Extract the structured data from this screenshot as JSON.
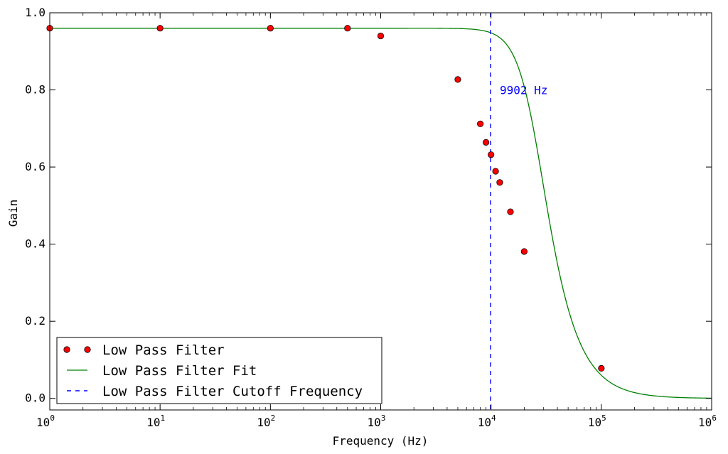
{
  "chart_data": {
    "type": "line",
    "title": "",
    "xlabel": "Frequency (Hz)",
    "ylabel": "Gain",
    "xscale": "log",
    "xlim": [
      1,
      1000000
    ],
    "ylim": [
      -0.03,
      1.0
    ],
    "grid": false,
    "legend_position": "lower-left",
    "x_ticks": [
      {
        "base": "10",
        "exp": "0",
        "value": 1
      },
      {
        "base": "10",
        "exp": "1",
        "value": 10
      },
      {
        "base": "10",
        "exp": "2",
        "value": 100
      },
      {
        "base": "10",
        "exp": "3",
        "value": 1000
      },
      {
        "base": "10",
        "exp": "4",
        "value": 10000
      },
      {
        "base": "10",
        "exp": "5",
        "value": 100000
      },
      {
        "base": "10",
        "exp": "6",
        "value": 1000000
      }
    ],
    "y_ticks": [
      {
        "label": "0.0",
        "value": 0.0
      },
      {
        "label": "0.2",
        "value": 0.2
      },
      {
        "label": "0.4",
        "value": 0.4
      },
      {
        "label": "0.6",
        "value": 0.6
      },
      {
        "label": "0.8",
        "value": 0.8
      },
      {
        "label": "1.0",
        "value": 1.0
      }
    ],
    "series": [
      {
        "name": "Low Pass Filter",
        "kind": "markers",
        "color": "#ff0000",
        "x": [
          1,
          10,
          100,
          500,
          1000,
          5000,
          8000,
          9000,
          10000,
          11000,
          12000,
          15000,
          20000,
          100000
        ],
        "y": [
          0.96,
          0.96,
          0.96,
          0.96,
          0.94,
          0.827,
          0.712,
          0.664,
          0.632,
          0.589,
          0.56,
          0.484,
          0.381,
          0.078
        ]
      },
      {
        "name": "Low Pass Filter Fit",
        "kind": "line",
        "color": "#008000",
        "model": {
          "gain": 0.96,
          "cutoff_hz": 25000,
          "order": 2
        }
      },
      {
        "name": "Low Pass Filter Cutoff Frequency",
        "kind": "vline",
        "color": "#0000ff",
        "x": 9902
      }
    ],
    "annotations": [
      {
        "text": "9902 Hz",
        "x": 12000,
        "y": 0.8,
        "color": "#0000ff"
      }
    ]
  }
}
